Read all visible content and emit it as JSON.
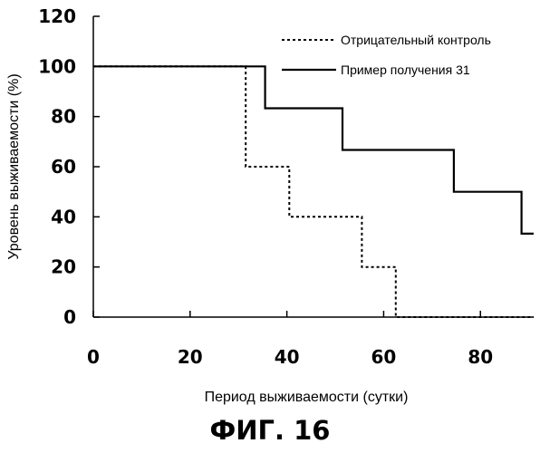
{
  "caption": "ФИГ. 16",
  "chart_data": {
    "type": "line",
    "step": true,
    "xlabel": "Период выживаемости (сутки)",
    "ylabel": "Уровень выживаемости (%)",
    "xlim": [
      0,
      91
    ],
    "ylim": [
      0,
      120
    ],
    "x_ticks": [
      "0",
      "20",
      "40",
      "60",
      "80"
    ],
    "y_ticks": [
      "0",
      "20",
      "40",
      "60",
      "80",
      "100",
      "120"
    ],
    "grid": false,
    "legend_position": "top-right",
    "series": [
      {
        "name": "Отрицательный контроль",
        "style": "dotted",
        "color": "#000000",
        "points": [
          [
            0,
            100
          ],
          [
            31.5,
            100
          ],
          [
            31.5,
            60
          ],
          [
            40.5,
            60
          ],
          [
            40.5,
            40
          ],
          [
            55.5,
            40
          ],
          [
            55.5,
            20
          ],
          [
            62.5,
            20
          ],
          [
            62.5,
            0
          ],
          [
            91,
            0
          ]
        ]
      },
      {
        "name": "Пример получения 31",
        "style": "solid",
        "color": "#000000",
        "points": [
          [
            0,
            100
          ],
          [
            35.5,
            100
          ],
          [
            35.5,
            83.3
          ],
          [
            51.5,
            83.3
          ],
          [
            51.5,
            66.7
          ],
          [
            74.5,
            66.7
          ],
          [
            74.5,
            50
          ],
          [
            88.5,
            50
          ],
          [
            88.5,
            33.3
          ],
          [
            91,
            33.3
          ]
        ]
      }
    ]
  }
}
